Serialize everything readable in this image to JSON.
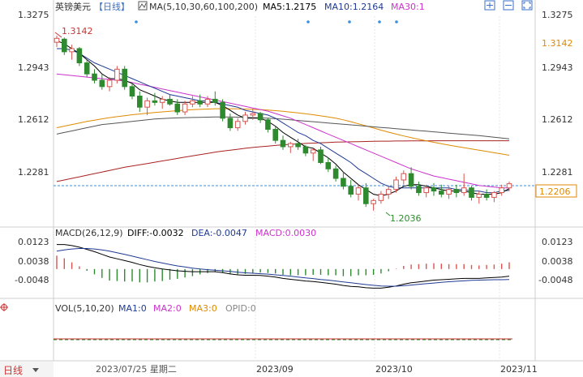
{
  "header": {
    "symbol": "英镑美元",
    "period": "【日线】",
    "ma_label": "MA(5,10,30,60,100,200)",
    "ma5": "MA5:1.2175",
    "ma10": "MA10:1.2164",
    "ma30": "MA30:1"
  },
  "toolbar": {
    "icons": [
      "expand-icon",
      "minimize-icon",
      "fullscreen-icon"
    ]
  },
  "price_axis": {
    "left_labels": [
      "1.3275",
      "1.2943",
      "1.2612",
      "1.2281"
    ],
    "right_labels": [
      "1.3275",
      "1.3142",
      "1.2943",
      "1.2612",
      "1.2281"
    ],
    "current_price": "1.2206",
    "high_label": "1.3142",
    "low_label": "1.2036"
  },
  "macd": {
    "label": "MACD(26,12,9)",
    "diff": "DIFF:-0.0032",
    "dea": "DEA:-0.0047",
    "macd": "MACD:0.0030",
    "axis_labels": [
      "0.0123",
      "0.0038",
      "-0.0048"
    ]
  },
  "vol": {
    "label": "VOL(5,10,20)",
    "ma1": "MA1:0",
    "ma2": "MA2:0",
    "ma3": "MA3:0",
    "opid": "OPID:0"
  },
  "footer": {
    "period_button": "日线",
    "dates": [
      "2023/07/25 星期二",
      "2023/09",
      "2023/10",
      "2023/11"
    ]
  },
  "colors": {
    "up": "#d9534f",
    "down": "#2f8a2f",
    "ma5": "#000000",
    "ma10": "#1f3a93",
    "ma30": "#cc33cc",
    "ma60": "#555555",
    "ma100": "#e08a00",
    "ma200": "#aa2222",
    "current": "#3b8fd9",
    "high": "#cc3333",
    "low": "#2f8a2f"
  },
  "chart_data": {
    "type": "candlestick",
    "y_range": [
      1.2,
      1.3275
    ],
    "candles": [
      [
        1.31,
        1.3142,
        1.307,
        1.3125
      ],
      [
        1.312,
        1.313,
        1.302,
        1.304
      ],
      [
        1.304,
        1.3085,
        1.299,
        1.306
      ],
      [
        1.306,
        1.307,
        1.295,
        1.297
      ],
      [
        1.297,
        1.299,
        1.288,
        1.29
      ],
      [
        1.29,
        1.293,
        1.284,
        1.286
      ],
      [
        1.286,
        1.29,
        1.28,
        1.282
      ],
      [
        1.282,
        1.288,
        1.279,
        1.286
      ],
      [
        1.286,
        1.295,
        1.284,
        1.293
      ],
      [
        1.293,
        1.295,
        1.28,
        1.282
      ],
      [
        1.282,
        1.284,
        1.274,
        1.276
      ],
      [
        1.276,
        1.279,
        1.266,
        1.269
      ],
      [
        1.269,
        1.275,
        1.264,
        1.273
      ],
      [
        1.273,
        1.278,
        1.27,
        1.272
      ],
      [
        1.272,
        1.276,
        1.268,
        1.274
      ],
      [
        1.274,
        1.277,
        1.27,
        1.271
      ],
      [
        1.271,
        1.274,
        1.264,
        1.266
      ],
      [
        1.266,
        1.273,
        1.264,
        1.271
      ],
      [
        1.271,
        1.276,
        1.269,
        1.273
      ],
      [
        1.273,
        1.277,
        1.269,
        1.271
      ],
      [
        1.271,
        1.276,
        1.269,
        1.274
      ],
      [
        1.274,
        1.279,
        1.27,
        1.272
      ],
      [
        1.272,
        1.274,
        1.26,
        1.262
      ],
      [
        1.262,
        1.265,
        1.254,
        1.256
      ],
      [
        1.256,
        1.262,
        1.254,
        1.26
      ],
      [
        1.26,
        1.266,
        1.258,
        1.264
      ],
      [
        1.264,
        1.268,
        1.261,
        1.265
      ],
      [
        1.265,
        1.266,
        1.259,
        1.261
      ],
      [
        1.261,
        1.262,
        1.253,
        1.255
      ],
      [
        1.255,
        1.257,
        1.246,
        1.248
      ],
      [
        1.248,
        1.251,
        1.242,
        1.244
      ],
      [
        1.244,
        1.247,
        1.24,
        1.246
      ],
      [
        1.246,
        1.249,
        1.242,
        1.244
      ],
      [
        1.244,
        1.245,
        1.238,
        1.24
      ],
      [
        1.24,
        1.243,
        1.235,
        1.242
      ],
      [
        1.242,
        1.244,
        1.233,
        1.234
      ],
      [
        1.234,
        1.237,
        1.228,
        1.23
      ],
      [
        1.23,
        1.232,
        1.222,
        1.224
      ],
      [
        1.224,
        1.228,
        1.217,
        1.219
      ],
      [
        1.219,
        1.223,
        1.212,
        1.214
      ],
      [
        1.214,
        1.22,
        1.21,
        1.218
      ],
      [
        1.218,
        1.221,
        1.206,
        1.208
      ],
      [
        1.208,
        1.211,
        1.2036,
        1.21
      ],
      [
        1.21,
        1.216,
        1.208,
        1.214
      ],
      [
        1.214,
        1.219,
        1.211,
        1.217
      ],
      [
        1.217,
        1.225,
        1.215,
        1.223
      ],
      [
        1.223,
        1.229,
        1.22,
        1.227
      ],
      [
        1.227,
        1.231,
        1.217,
        1.219
      ],
      [
        1.219,
        1.222,
        1.213,
        1.215
      ],
      [
        1.215,
        1.22,
        1.212,
        1.218
      ],
      [
        1.218,
        1.221,
        1.213,
        1.216
      ],
      [
        1.216,
        1.22,
        1.212,
        1.214
      ],
      [
        1.214,
        1.219,
        1.211,
        1.217
      ],
      [
        1.217,
        1.22,
        1.212,
        1.215
      ],
      [
        1.215,
        1.227,
        1.213,
        1.218
      ],
      [
        1.218,
        1.219,
        1.21,
        1.212
      ],
      [
        1.212,
        1.216,
        1.208,
        1.214
      ],
      [
        1.214,
        1.217,
        1.21,
        1.212
      ],
      [
        1.212,
        1.216,
        1.209,
        1.215
      ],
      [
        1.215,
        1.22,
        1.213,
        1.218
      ],
      [
        1.218,
        1.222,
        1.216,
        1.2206
      ]
    ],
    "ma5": [
      1.311,
      1.309,
      1.306,
      1.303,
      1.299,
      1.295,
      1.29,
      1.287,
      1.287,
      1.286,
      1.284,
      1.28,
      1.278,
      1.276,
      1.274,
      1.273,
      1.272,
      1.272,
      1.272,
      1.272,
      1.272,
      1.272,
      1.27,
      1.267,
      1.264,
      1.262,
      1.262,
      1.262,
      1.26,
      1.257,
      1.253,
      1.25,
      1.247,
      1.244,
      1.243,
      1.24,
      1.237,
      1.233,
      1.228,
      1.224,
      1.22,
      1.217,
      1.214,
      1.213,
      1.214,
      1.216,
      1.219,
      1.22,
      1.22,
      1.219,
      1.218,
      1.217,
      1.216,
      1.216,
      1.216,
      1.215,
      1.214,
      1.214,
      1.214,
      1.215,
      1.2175
    ],
    "ma10": [
      1.306,
      1.306,
      1.305,
      1.303,
      1.3,
      1.297,
      1.295,
      1.293,
      1.291,
      1.289,
      1.287,
      1.285,
      1.283,
      1.281,
      1.279,
      1.277,
      1.276,
      1.275,
      1.274,
      1.273,
      1.273,
      1.272,
      1.271,
      1.27,
      1.269,
      1.267,
      1.266,
      1.265,
      1.264,
      1.262,
      1.259,
      1.256,
      1.253,
      1.251,
      1.248,
      1.246,
      1.243,
      1.24,
      1.237,
      1.234,
      1.23,
      1.227,
      1.224,
      1.221,
      1.219,
      1.218,
      1.218,
      1.218,
      1.218,
      1.218,
      1.218,
      1.218,
      1.218,
      1.217,
      1.217,
      1.216,
      1.216,
      1.215,
      1.215,
      1.216,
      1.2164
    ],
    "ma30": [
      1.29,
      1.2895,
      1.289,
      1.2885,
      1.288,
      1.2875,
      1.287,
      1.2865,
      1.286,
      1.2855,
      1.2845,
      1.2835,
      1.2825,
      1.2815,
      1.2805,
      1.2795,
      1.2785,
      1.2775,
      1.2765,
      1.2755,
      1.2745,
      1.2735,
      1.2725,
      1.2715,
      1.2705,
      1.2695,
      1.2685,
      1.2675,
      1.2665,
      1.265,
      1.2635,
      1.262,
      1.26,
      1.258,
      1.256,
      1.254,
      1.252,
      1.25,
      1.248,
      1.246,
      1.244,
      1.242,
      1.24,
      1.238,
      1.236,
      1.234,
      1.232,
      1.23,
      1.2285,
      1.227,
      1.2255,
      1.2245,
      1.2235,
      1.2225,
      1.2215,
      1.2205,
      1.2195,
      1.219,
      1.2185,
      1.218,
      1.218
    ],
    "ma60": [
      1.252,
      1.253,
      1.254,
      1.255,
      1.256,
      1.257,
      1.258,
      1.2585,
      1.259,
      1.2595,
      1.26,
      1.2605,
      1.261,
      1.2615,
      1.2618,
      1.262,
      1.2622,
      1.2624,
      1.2625,
      1.2626,
      1.2627,
      1.2628,
      1.2628,
      1.2628,
      1.2627,
      1.2626,
      1.2624,
      1.2622,
      1.262,
      1.2617,
      1.2614,
      1.261,
      1.2606,
      1.2602,
      1.2598,
      1.2594,
      1.259,
      1.2586,
      1.2582,
      1.2578,
      1.2574,
      1.257,
      1.2566,
      1.2562,
      1.2558,
      1.2554,
      1.255,
      1.2546,
      1.2542,
      1.2538,
      1.2534,
      1.253,
      1.2526,
      1.2522,
      1.2518,
      1.2514,
      1.251,
      1.2505,
      1.25,
      1.2495,
      1.249
    ],
    "ma100": [
      1.256,
      1.257,
      1.258,
      1.259,
      1.26,
      1.2608,
      1.2616,
      1.2624,
      1.263,
      1.2636,
      1.2642,
      1.2647,
      1.2652,
      1.2656,
      1.266,
      1.2664,
      1.2668,
      1.2671,
      1.2674,
      1.2676,
      1.2678,
      1.268,
      1.268,
      1.268,
      1.2679,
      1.2678,
      1.2676,
      1.2674,
      1.2672,
      1.2668,
      1.2664,
      1.2659,
      1.2654,
      1.2648,
      1.2642,
      1.2635,
      1.2628,
      1.262,
      1.261,
      1.2598,
      1.2585,
      1.2572,
      1.2558,
      1.2545,
      1.2532,
      1.252,
      1.2508,
      1.2497,
      1.2487,
      1.2477,
      1.2468,
      1.2459,
      1.245,
      1.2442,
      1.2434,
      1.2426,
      1.2418,
      1.241,
      1.2402,
      1.2394,
      1.2386
    ],
    "ma200": [
      1.222,
      1.223,
      1.224,
      1.225,
      1.226,
      1.227,
      1.228,
      1.229,
      1.23,
      1.231,
      1.2318,
      1.2326,
      1.2334,
      1.2342,
      1.235,
      1.2358,
      1.2366,
      1.2374,
      1.2382,
      1.239,
      1.2398,
      1.2406,
      1.2412,
      1.2418,
      1.2424,
      1.243,
      1.2435,
      1.244,
      1.2444,
      1.2448,
      1.2452,
      1.2455,
      1.2458,
      1.2461,
      1.2463,
      1.2465,
      1.2467,
      1.2469,
      1.247,
      1.2471,
      1.2472,
      1.2473,
      1.2474,
      1.2475,
      1.2475,
      1.2476,
      1.2476,
      1.2477,
      1.2477,
      1.2477,
      1.2478,
      1.2478,
      1.2478,
      1.2478,
      1.2478,
      1.2478,
      1.2478,
      1.2478,
      1.2478,
      1.2478,
      1.2478
    ],
    "macd_y_range": [
      -0.009,
      0.017
    ],
    "diff": [
      0.011,
      0.011,
      0.0105,
      0.0098,
      0.0088,
      0.0078,
      0.0066,
      0.0054,
      0.0046,
      0.0038,
      0.003,
      0.002,
      0.0012,
      0.0006,
      0.0,
      -0.0004,
      -0.0008,
      -0.001,
      -0.0012,
      -0.0012,
      -0.0012,
      -0.0012,
      -0.0016,
      -0.0022,
      -0.0026,
      -0.0028,
      -0.0028,
      -0.0029,
      -0.0032,
      -0.0036,
      -0.0042,
      -0.0046,
      -0.005,
      -0.0054,
      -0.0056,
      -0.006,
      -0.0064,
      -0.0068,
      -0.0074,
      -0.0078,
      -0.008,
      -0.0084,
      -0.0086,
      -0.0086,
      -0.0082,
      -0.0076,
      -0.0068,
      -0.0062,
      -0.0058,
      -0.0054,
      -0.005,
      -0.0048,
      -0.0046,
      -0.0044,
      -0.0042,
      -0.0042,
      -0.0042,
      -0.004,
      -0.0038,
      -0.0036,
      -0.0032
    ],
    "dea": [
      0.008,
      0.0086,
      0.009,
      0.0092,
      0.0092,
      0.009,
      0.0086,
      0.008,
      0.0073,
      0.0066,
      0.0058,
      0.005,
      0.0042,
      0.0034,
      0.0027,
      0.002,
      0.0014,
      0.0009,
      0.0004,
      0.0,
      -0.0003,
      -0.0005,
      -0.0008,
      -0.0011,
      -0.0014,
      -0.0017,
      -0.0019,
      -0.0021,
      -0.0023,
      -0.0026,
      -0.0029,
      -0.0032,
      -0.0036,
      -0.004,
      -0.0043,
      -0.0047,
      -0.005,
      -0.0054,
      -0.0058,
      -0.0062,
      -0.0066,
      -0.007,
      -0.0073,
      -0.0076,
      -0.0077,
      -0.0077,
      -0.0075,
      -0.0072,
      -0.0069,
      -0.0066,
      -0.0063,
      -0.006,
      -0.0057,
      -0.0055,
      -0.0053,
      -0.0051,
      -0.005,
      -0.0049,
      -0.0048,
      -0.0048,
      -0.0047
    ]
  }
}
